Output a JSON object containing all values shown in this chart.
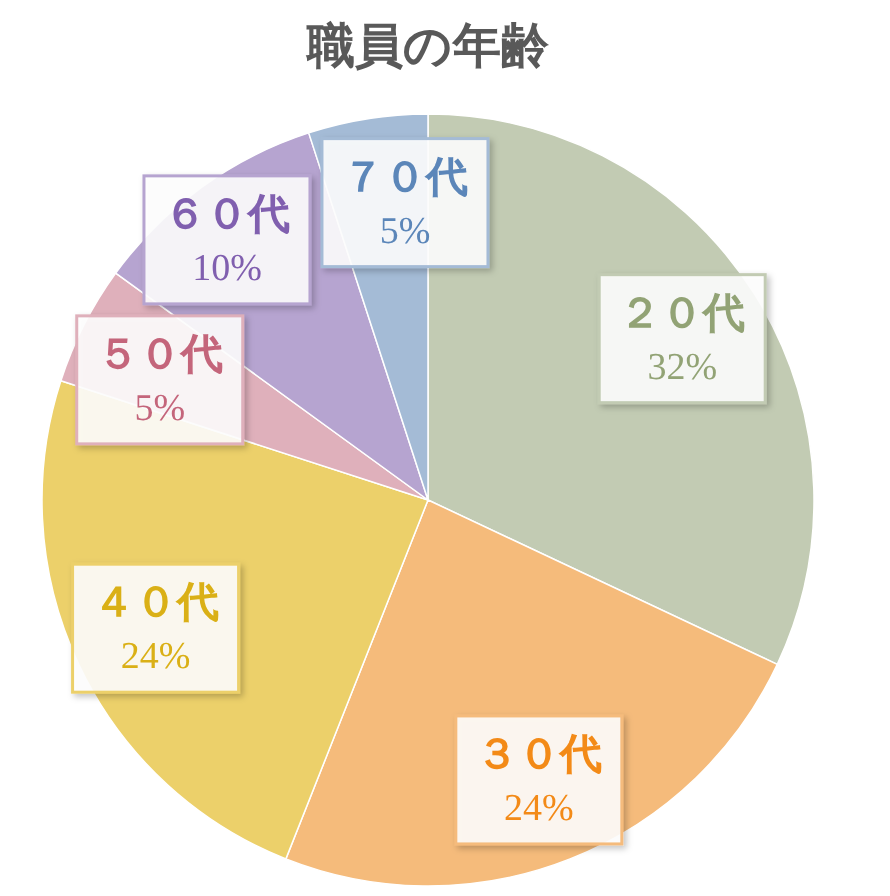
{
  "chart_data": {
    "type": "pie",
    "title": "職員の年齢",
    "categories": [
      "２０代",
      "３０代",
      "４０代",
      "５０代",
      "６０代",
      "７０代"
    ],
    "values": [
      32,
      24,
      24,
      5,
      10,
      5
    ],
    "value_labels": [
      "32%",
      "24%",
      "24%",
      "5%",
      "10%",
      "5%"
    ],
    "colors": [
      "#c2cbb3",
      "#f5bb7b",
      "#ecd06a",
      "#dfb0bb",
      "#b6a4d0",
      "#a4bbd6"
    ]
  }
}
